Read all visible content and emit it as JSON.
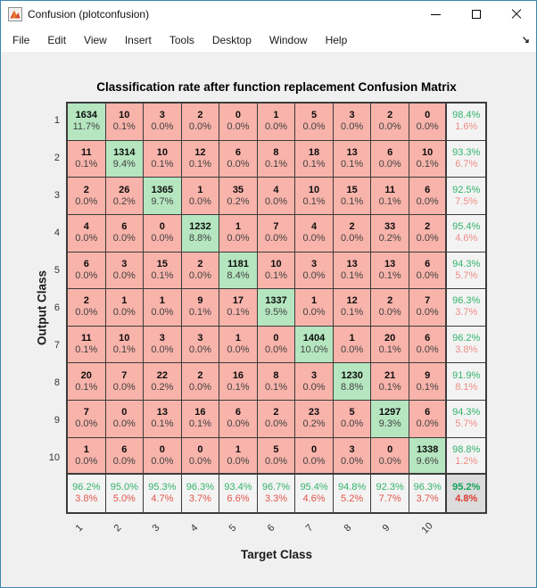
{
  "window": {
    "title": "Confusion (plotconfusion)",
    "controls": [
      {
        "name": "minimize"
      },
      {
        "name": "maximize"
      },
      {
        "name": "close"
      }
    ]
  },
  "menu": {
    "items": [
      "File",
      "Edit",
      "View",
      "Insert",
      "Tools",
      "Desktop",
      "Window",
      "Help"
    ],
    "dock_glyph": "↘"
  },
  "chart_data": {
    "type": "heatmap",
    "title": "Classification rate after function replacement Confusion Matrix",
    "xlabel": "Target Class",
    "ylabel": "Output Class",
    "classes": [
      "1",
      "2",
      "3",
      "4",
      "5",
      "6",
      "7",
      "8",
      "9",
      "10"
    ],
    "counts": [
      [
        1634,
        10,
        3,
        2,
        0,
        1,
        5,
        3,
        2,
        0
      ],
      [
        11,
        1314,
        10,
        12,
        6,
        8,
        18,
        13,
        6,
        10
      ],
      [
        2,
        26,
        1365,
        1,
        35,
        4,
        10,
        15,
        11,
        6
      ],
      [
        4,
        6,
        0,
        1232,
        1,
        7,
        4,
        2,
        33,
        2
      ],
      [
        6,
        3,
        15,
        2,
        1181,
        10,
        3,
        13,
        13,
        6
      ],
      [
        2,
        1,
        1,
        9,
        17,
        1337,
        1,
        12,
        2,
        7
      ],
      [
        11,
        10,
        3,
        3,
        1,
        0,
        1404,
        1,
        20,
        6
      ],
      [
        20,
        7,
        22,
        2,
        16,
        8,
        3,
        1230,
        21,
        9
      ],
      [
        7,
        0,
        13,
        16,
        6,
        2,
        23,
        5,
        1297,
        6
      ],
      [
        1,
        6,
        0,
        0,
        1,
        5,
        0,
        3,
        0,
        1338
      ]
    ],
    "percents": [
      [
        "11.7%",
        "0.1%",
        "0.0%",
        "0.0%",
        "0.0%",
        "0.0%",
        "0.0%",
        "0.0%",
        "0.0%",
        "0.0%"
      ],
      [
        "0.1%",
        "9.4%",
        "0.1%",
        "0.1%",
        "0.0%",
        "0.1%",
        "0.1%",
        "0.1%",
        "0.0%",
        "0.1%"
      ],
      [
        "0.0%",
        "0.2%",
        "9.7%",
        "0.0%",
        "0.2%",
        "0.0%",
        "0.1%",
        "0.1%",
        "0.1%",
        "0.0%"
      ],
      [
        "0.0%",
        "0.0%",
        "0.0%",
        "8.8%",
        "0.0%",
        "0.0%",
        "0.0%",
        "0.0%",
        "0.2%",
        "0.0%"
      ],
      [
        "0.0%",
        "0.0%",
        "0.1%",
        "0.0%",
        "8.4%",
        "0.1%",
        "0.0%",
        "0.1%",
        "0.1%",
        "0.0%"
      ],
      [
        "0.0%",
        "0.0%",
        "0.0%",
        "0.1%",
        "0.1%",
        "9.5%",
        "0.0%",
        "0.1%",
        "0.0%",
        "0.0%"
      ],
      [
        "0.1%",
        "0.1%",
        "0.0%",
        "0.0%",
        "0.0%",
        "0.0%",
        "10.0%",
        "0.0%",
        "0.1%",
        "0.0%"
      ],
      [
        "0.1%",
        "0.0%",
        "0.2%",
        "0.0%",
        "0.1%",
        "0.1%",
        "0.0%",
        "8.8%",
        "0.1%",
        "0.1%"
      ],
      [
        "0.0%",
        "0.0%",
        "0.1%",
        "0.1%",
        "0.0%",
        "0.0%",
        "0.2%",
        "0.0%",
        "9.3%",
        "0.0%"
      ],
      [
        "0.0%",
        "0.0%",
        "0.0%",
        "0.0%",
        "0.0%",
        "0.0%",
        "0.0%",
        "0.0%",
        "0.0%",
        "9.6%"
      ]
    ],
    "row_summary": [
      [
        "98.4%",
        "1.6%"
      ],
      [
        "93.3%",
        "6.7%"
      ],
      [
        "92.5%",
        "7.5%"
      ],
      [
        "95.4%",
        "4.6%"
      ],
      [
        "94.3%",
        "5.7%"
      ],
      [
        "96.3%",
        "3.7%"
      ],
      [
        "96.2%",
        "3.8%"
      ],
      [
        "91.9%",
        "8.1%"
      ],
      [
        "94.3%",
        "5.7%"
      ],
      [
        "98.8%",
        "1.2%"
      ]
    ],
    "col_summary": [
      [
        "96.2%",
        "3.8%"
      ],
      [
        "95.0%",
        "5.0%"
      ],
      [
        "95.3%",
        "4.7%"
      ],
      [
        "96.3%",
        "3.7%"
      ],
      [
        "93.4%",
        "6.6%"
      ],
      [
        "96.7%",
        "3.3%"
      ],
      [
        "95.4%",
        "4.6%"
      ],
      [
        "94.8%",
        "5.2%"
      ],
      [
        "92.3%",
        "7.7%"
      ],
      [
        "96.3%",
        "3.7%"
      ]
    ],
    "total_summary": [
      "95.2%",
      "4.8%"
    ]
  },
  "colors": {
    "diagonal_cell": "#b5e6bf",
    "offdiagonal_cell": "#f8b3aa",
    "summary_cell": "#f3f3f3",
    "total_cell": "#dcdcdc",
    "green_text": "#34b36b",
    "green_text_strong": "#12a258",
    "red_text_light": "#ef8d84",
    "red_text_strong": "#e2574c",
    "red_text_total": "#dd3a2c",
    "grid_line": "#3b3b3b",
    "window_border": "#3d86ad",
    "figure_bg": "#f0f0f0"
  }
}
